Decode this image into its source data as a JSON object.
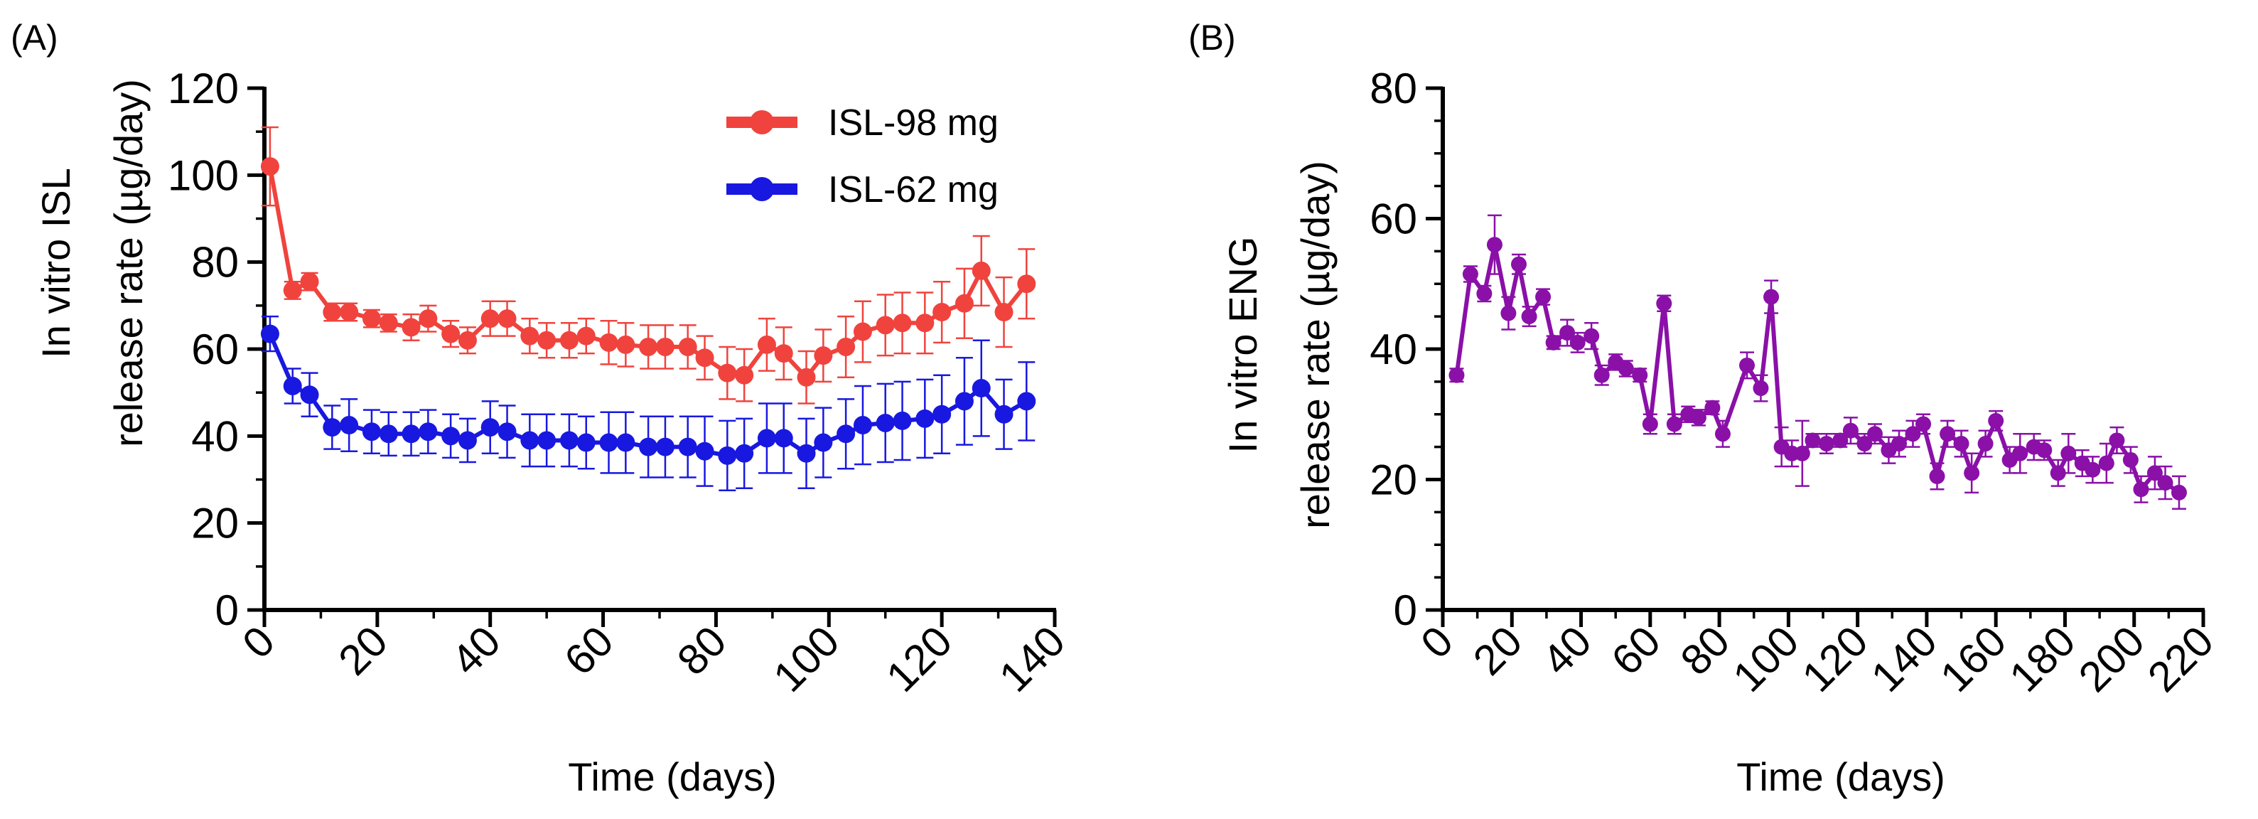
{
  "chart_data": [
    {
      "type": "line",
      "panel_label": "(A)",
      "title": "",
      "xlabel": "Time (days)",
      "ylabel_lines": [
        "In vitro ISL",
        "release rate (µg/day)"
      ],
      "xlim": [
        0,
        140
      ],
      "ylim": [
        0,
        120
      ],
      "xticks": [
        0,
        20,
        40,
        60,
        80,
        100,
        120,
        140
      ],
      "yticks": [
        0,
        20,
        40,
        60,
        80,
        100,
        120
      ],
      "x_minor_step": 10,
      "y_minor_step": 10,
      "legend_position": "top-right",
      "series": [
        {
          "name": "ISL-98 mg",
          "color": "#f0433d",
          "x": [
            1,
            5,
            8,
            12,
            15,
            19,
            22,
            26,
            29,
            33,
            36,
            40,
            43,
            47,
            50,
            54,
            57,
            61,
            64,
            68,
            71,
            75,
            78,
            82,
            85,
            89,
            92,
            96,
            99,
            103,
            106,
            110,
            113,
            117,
            120,
            124,
            127,
            131,
            135
          ],
          "y": [
            102,
            73.5,
            75.5,
            68.5,
            68.5,
            67,
            66,
            65,
            67,
            63.5,
            62,
            67,
            67,
            63,
            62,
            62,
            63,
            61.5,
            61,
            60.5,
            60.5,
            60.5,
            58,
            54.5,
            54,
            61,
            59,
            53.5,
            58.5,
            60.5,
            64,
            65.5,
            66,
            66,
            68.5,
            70.5,
            78,
            68.5,
            75
          ],
          "err": [
            9,
            2,
            2,
            2,
            2,
            2,
            2,
            3,
            3,
            3,
            3,
            4,
            4,
            4,
            4,
            4,
            4,
            5,
            5,
            5,
            5,
            5,
            5,
            6,
            6,
            6,
            6,
            6,
            6,
            7,
            7,
            7,
            7,
            7,
            7,
            8,
            8,
            8,
            8
          ]
        },
        {
          "name": "ISL-62 mg",
          "color": "#1818e0",
          "x": [
            1,
            5,
            8,
            12,
            15,
            19,
            22,
            26,
            29,
            33,
            36,
            40,
            43,
            47,
            50,
            54,
            57,
            61,
            64,
            68,
            71,
            75,
            78,
            82,
            85,
            89,
            92,
            96,
            99,
            103,
            106,
            110,
            113,
            117,
            120,
            124,
            127,
            131,
            135
          ],
          "y": [
            63.5,
            51.5,
            49.5,
            42,
            42.5,
            41,
            40.5,
            40.5,
            41,
            40,
            39,
            42,
            41,
            39,
            39,
            39,
            38.5,
            38.5,
            38.5,
            37.5,
            37.5,
            37.5,
            36.5,
            35.5,
            36,
            39.5,
            39.5,
            36,
            38.5,
            40.5,
            42.5,
            43,
            43.5,
            44,
            45,
            48,
            51,
            45,
            48
          ],
          "err": [
            4,
            4,
            5,
            5,
            6,
            5,
            5,
            5,
            5,
            5,
            5,
            6,
            6,
            6,
            6,
            6,
            6,
            7,
            7,
            7,
            7,
            7,
            8,
            8,
            8,
            8,
            8,
            8,
            8,
            8,
            9,
            9,
            9,
            9,
            9,
            10,
            11,
            8,
            9
          ]
        }
      ]
    },
    {
      "type": "line",
      "panel_label": "(B)",
      "title": "",
      "xlabel": "Time (days)",
      "ylabel_lines": [
        "In vitro ENG",
        "release rate (µg/day)"
      ],
      "xlim": [
        0,
        220
      ],
      "ylim": [
        0,
        80
      ],
      "xticks": [
        0,
        20,
        40,
        60,
        80,
        100,
        120,
        140,
        160,
        180,
        200,
        220
      ],
      "yticks": [
        0,
        20,
        40,
        60,
        80
      ],
      "x_minor_step": 10,
      "y_minor_step": 5,
      "series": [
        {
          "name": "ENG",
          "color": "#8a10a8",
          "x": [
            4,
            8,
            12,
            15,
            19,
            22,
            25,
            29,
            32,
            36,
            39,
            43,
            46,
            50,
            53,
            57,
            60,
            64,
            67,
            71,
            74,
            78,
            81,
            88,
            92,
            95,
            98,
            101,
            104,
            107,
            111,
            115,
            118,
            122,
            125,
            129,
            132,
            136,
            139,
            143,
            146,
            150,
            153,
            157,
            160,
            164,
            167,
            171,
            174,
            178,
            181,
            185,
            188,
            192,
            195,
            199,
            202,
            206,
            209,
            213
          ],
          "y": [
            36,
            51.5,
            48.5,
            56,
            45.5,
            53,
            45,
            48,
            41,
            42.5,
            41,
            42,
            36,
            38,
            37,
            36,
            28.5,
            47,
            28.5,
            30,
            29.5,
            31,
            27,
            37.5,
            34,
            48,
            25,
            24,
            24,
            26,
            25.5,
            26,
            27.5,
            25.5,
            27,
            24.5,
            25.5,
            27,
            28.5,
            20.5,
            27,
            25.5,
            21,
            25.5,
            29,
            23,
            24,
            25,
            24.5,
            21,
            24,
            22.5,
            21.5,
            22.5,
            26,
            23,
            18.5,
            21,
            19.5,
            18
          ],
          "err": [
            1,
            1.2,
            1.2,
            4.5,
            2.5,
            1.5,
            1.5,
            1.2,
            1,
            2,
            1.5,
            2,
            1.5,
            1.2,
            1.2,
            1,
            1.5,
            1.2,
            1.5,
            1.2,
            1.2,
            1,
            2,
            2,
            2,
            2.5,
            3,
            2,
            5,
            1,
            1.5,
            1,
            2,
            1.5,
            1.5,
            2,
            2,
            2,
            1.5,
            2,
            2,
            2,
            3,
            2,
            1.5,
            2,
            3,
            2,
            1.5,
            2,
            3,
            2,
            2,
            3,
            2,
            2,
            2,
            2.5,
            2.5,
            2.5
          ]
        }
      ]
    }
  ]
}
